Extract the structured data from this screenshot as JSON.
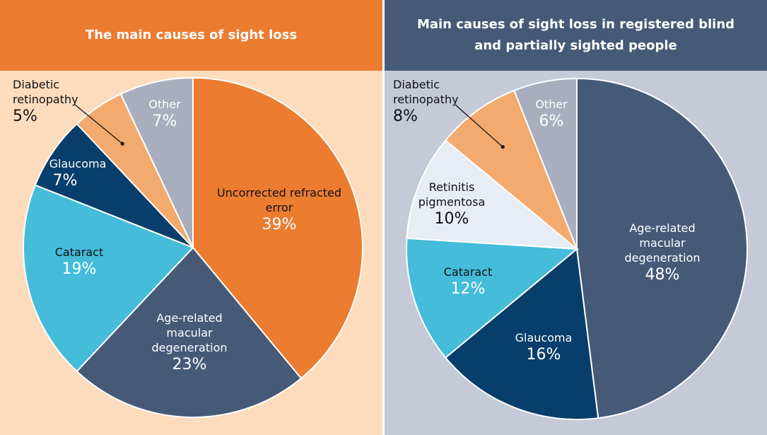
{
  "chart_data": [
    {
      "type": "pie",
      "title": "The main causes of sight loss",
      "slices": [
        {
          "label": "Uncorrected refracted error",
          "value": 39,
          "value_label": "39%",
          "color": "#EC7C30"
        },
        {
          "label": "Age-related macular degeneration",
          "value": 23,
          "value_label": "23%",
          "color": "#465A78"
        },
        {
          "label": "Cataract",
          "value": 19,
          "value_label": "19%",
          "color": "#44BCDA"
        },
        {
          "label": "Glaucoma",
          "value": 7,
          "value_label": "7%",
          "color": "#083E6B"
        },
        {
          "label": "Diabetic retinopathy",
          "value": 5,
          "value_label": "5%",
          "color": "#F3AA6E"
        },
        {
          "label": "Other",
          "value": 7,
          "value_label": "7%",
          "color": "#A9AEBE"
        }
      ],
      "header_color": "#EC7C30",
      "background_color": "#FDDCBE"
    },
    {
      "type": "pie",
      "title": "Main causes of sight loss in registered blind and partially sighted people",
      "slices": [
        {
          "label": "Age-related macular degeneration",
          "value": 48,
          "value_label": "48%",
          "color": "#465A78"
        },
        {
          "label": "Glaucoma",
          "value": 16,
          "value_label": "16%",
          "color": "#083E6B"
        },
        {
          "label": "Cataract",
          "value": 12,
          "value_label": "12%",
          "color": "#44BCDA"
        },
        {
          "label": "Retinitis pigmentosa",
          "value": 10,
          "value_label": "10%",
          "color": "#E8ECF4"
        },
        {
          "label": "Diabetic retinopathy",
          "value": 8,
          "value_label": "8%",
          "color": "#F3AA6E"
        },
        {
          "label": "Other",
          "value": 6,
          "value_label": "6%",
          "color": "#A9AEBE"
        }
      ],
      "header_color": "#465A78",
      "background_color": "#C4CAD8"
    }
  ]
}
